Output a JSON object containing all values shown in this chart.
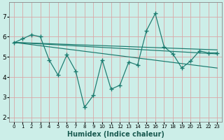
{
  "background_color": "#cceee8",
  "grid_color": "#b8ddd8",
  "line_color": "#1a7a6e",
  "xlabel": "Humidex (Indice chaleur)",
  "ylim": [
    1.8,
    7.7
  ],
  "xlim": [
    -0.5,
    23.5
  ],
  "yticks": [
    2,
    3,
    4,
    5,
    6,
    7
  ],
  "xticks": [
    0,
    1,
    2,
    3,
    4,
    5,
    6,
    7,
    8,
    9,
    10,
    11,
    12,
    13,
    14,
    15,
    16,
    17,
    18,
    19,
    20,
    21,
    22,
    23
  ],
  "main_x": [
    0,
    1,
    2,
    3,
    4,
    5,
    6,
    7,
    8,
    9,
    10,
    11,
    12,
    13,
    14,
    15,
    16,
    17,
    18,
    19,
    20,
    21,
    22,
    23
  ],
  "main_y": [
    5.7,
    5.9,
    6.1,
    6.0,
    4.85,
    4.1,
    5.1,
    4.3,
    2.5,
    3.1,
    4.85,
    3.4,
    3.6,
    4.75,
    4.6,
    6.3,
    7.15,
    5.5,
    5.15,
    4.45,
    4.8,
    5.3,
    5.2,
    5.2
  ],
  "trend1_x": [
    0,
    23
  ],
  "trend1_y": [
    5.72,
    4.45
  ],
  "trend2_x": [
    0,
    23
  ],
  "trend2_y": [
    5.72,
    5.15
  ],
  "trend3_x": [
    0,
    23
  ],
  "trend3_y": [
    5.72,
    5.35
  ]
}
